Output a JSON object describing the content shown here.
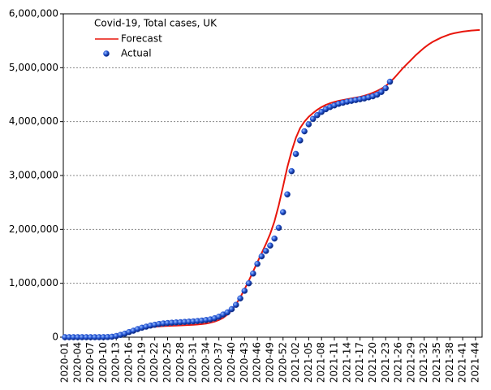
{
  "chart_data": {
    "type": "line-scatter",
    "legend_title": "Covid-19, Total cases, UK",
    "legend": "upper-left",
    "grid": true,
    "categories": [
      "2020-01",
      null,
      null,
      "2020-04",
      null,
      null,
      "2020-07",
      null,
      null,
      "2020-10",
      null,
      null,
      "2020-13",
      null,
      null,
      "2020-16",
      null,
      null,
      "2020-19",
      null,
      null,
      "2020-22",
      null,
      null,
      "2020-25",
      null,
      null,
      "2020-28",
      null,
      null,
      "2020-31",
      null,
      null,
      "2020-34",
      null,
      null,
      "2020-37",
      null,
      null,
      "2020-40",
      null,
      null,
      "2020-43",
      null,
      null,
      "2020-46",
      null,
      null,
      "2020-49",
      null,
      null,
      "2020-52",
      null,
      null,
      "2021-02",
      null,
      null,
      "2021-05",
      null,
      null,
      "2021-08",
      null,
      null,
      "2021-11",
      null,
      null,
      "2021-14",
      null,
      null,
      "2021-17",
      null,
      null,
      "2021-20",
      null,
      null,
      "2021-23",
      null,
      null,
      "2021-26",
      null,
      null,
      "2021-29",
      null,
      null,
      "2021-32",
      null,
      null,
      "2021-35",
      null,
      null,
      "2021-38",
      null,
      null,
      "2021-41",
      null,
      null,
      "2021-44",
      null
    ],
    "series": [
      {
        "name": "Forecast",
        "kind": "line",
        "color": "#e8160c",
        "values": [
          0,
          0,
          0,
          0,
          0,
          0,
          0,
          0,
          0,
          0,
          2000,
          6000,
          15000,
          35000,
          60000,
          90000,
          115000,
          140000,
          160000,
          175000,
          185000,
          195000,
          200000,
          205000,
          210000,
          212000,
          215000,
          218000,
          222000,
          226000,
          230000,
          235000,
          242000,
          252000,
          268000,
          290000,
          320000,
          360000,
          420000,
          500000,
          610000,
          740000,
          890000,
          1050000,
          1220000,
          1390000,
          1560000,
          1730000,
          1920000,
          2150000,
          2450000,
          2800000,
          3150000,
          3450000,
          3700000,
          3880000,
          4000000,
          4090000,
          4160000,
          4220000,
          4270000,
          4310000,
          4340000,
          4365000,
          4385000,
          4400000,
          4415000,
          4430000,
          4445000,
          4460000,
          4480000,
          4505000,
          4535000,
          4570000,
          4610000,
          4660000,
          4730000,
          4810000,
          4900000,
          4990000,
          5070000,
          5150000,
          5230000,
          5300000,
          5370000,
          5430000,
          5480000,
          5520000,
          5560000,
          5590000,
          5620000,
          5640000,
          5655000,
          5670000,
          5680000,
          5690000,
          5695000,
          5700000
        ]
      },
      {
        "name": "Actual",
        "kind": "points",
        "color": "#1f4fd0",
        "values": [
          0,
          0,
          0,
          0,
          0,
          0,
          0,
          0,
          300,
          1000,
          3000,
          8000,
          22000,
          42000,
          65000,
          95000,
          120000,
          150000,
          175000,
          195000,
          215000,
          230000,
          245000,
          255000,
          262000,
          268000,
          273000,
          278000,
          283000,
          288000,
          293000,
          300000,
          308000,
          318000,
          330000,
          350000,
          380000,
          420000,
          460000,
          520000,
          600000,
          720000,
          860000,
          1000000,
          1180000,
          1360000,
          1500000,
          1600000,
          1700000,
          1830000,
          2030000,
          2320000,
          2650000,
          3080000,
          3400000,
          3650000,
          3820000,
          3950000,
          4050000,
          4120000,
          4180000,
          4230000,
          4270000,
          4300000,
          4330000,
          4350000,
          4370000,
          4385000,
          4400000,
          4415000,
          4430000,
          4450000,
          4470000,
          4500000,
          4550000,
          4620000,
          4740000,
          null,
          null,
          null,
          null,
          null,
          null,
          null,
          null,
          null,
          null,
          null,
          null,
          null,
          null,
          null,
          null,
          null,
          null,
          null,
          null,
          null
        ]
      }
    ],
    "ylim": [
      0,
      6000000
    ],
    "yticks": [
      0,
      {
        "value": 1000000,
        "label": "1,000,000"
      },
      {
        "value": 2000000,
        "label": "2,000,000"
      },
      {
        "value": 3000000,
        "label": "3,000,000"
      },
      {
        "value": 4000000,
        "label": "4,000,000"
      },
      {
        "value": 5000000,
        "label": "5,000,000"
      },
      {
        "value": 6000000,
        "label": "6,000,000"
      }
    ]
  }
}
